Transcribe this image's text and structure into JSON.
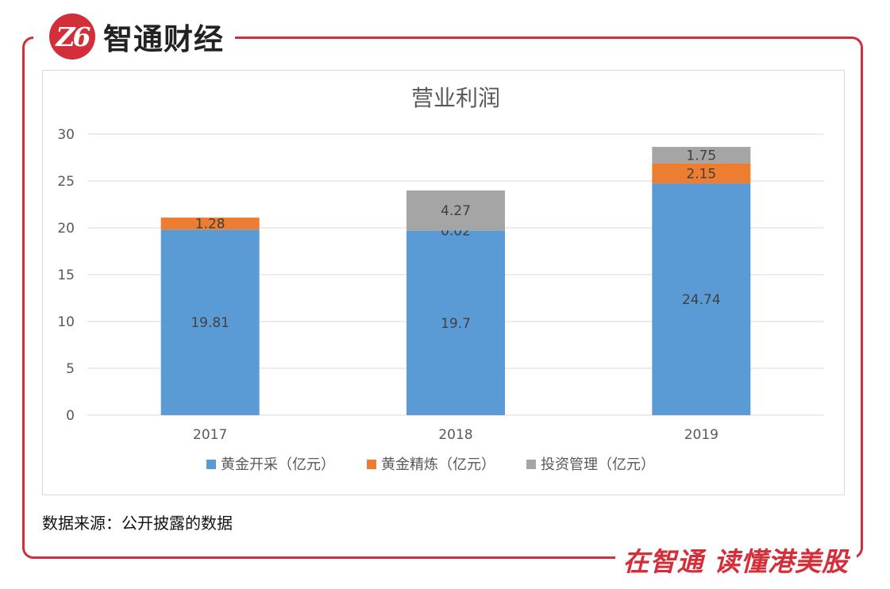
{
  "brand": {
    "logo_text": "Z6",
    "name": "智通财经"
  },
  "footer": {
    "source": "数据来源：公开披露的数据",
    "slogan": "在智通 读懂港美股"
  },
  "colors": {
    "series1": "#5b9bd5",
    "series2": "#ed7d31",
    "series3": "#a5a5a5",
    "brand": "#d32f3a"
  },
  "chart_data": {
    "type": "bar",
    "stacked": true,
    "title": "营业利润",
    "categories": [
      "2017",
      "2018",
      "2019"
    ],
    "series": [
      {
        "name": "黄金开采（亿元）",
        "values": [
          19.81,
          19.7,
          24.74
        ],
        "labels": [
          "19.81",
          "19.7",
          "24.74"
        ]
      },
      {
        "name": "黄金精炼（亿元）",
        "values": [
          1.28,
          0.02,
          2.15
        ],
        "labels": [
          "1.28",
          "0.02",
          "2.15"
        ]
      },
      {
        "name": "投资管理（亿元）",
        "values": [
          0,
          4.27,
          1.75
        ],
        "labels": [
          "",
          "4.27",
          "1.75"
        ]
      }
    ],
    "ylim": [
      0,
      30
    ],
    "yticks": [
      "0",
      "5",
      "10",
      "15",
      "20",
      "25",
      "30"
    ],
    "xlabel": "",
    "ylabel": "",
    "grid": true,
    "legend": "bottom"
  }
}
